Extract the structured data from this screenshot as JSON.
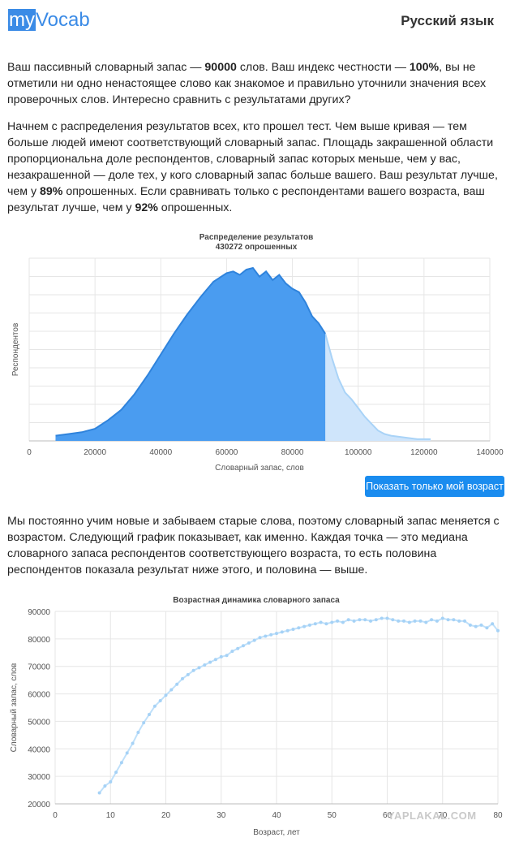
{
  "header": {
    "logo_my": "my",
    "logo_rest": "Vocab",
    "language": "Русский язык"
  },
  "intro": {
    "p1_a": "Ваш пассивный словарный запас — ",
    "vocab_value": "90000",
    "p1_b": " слов. Ваш индекс честности — ",
    "honesty_value": "100%",
    "p1_c": ", вы не отметили ни одно ненастоящее слово как знакомое и правильно уточнили значения всех проверочных слов. Интересно сравнить с результатами других?",
    "p2_a": "Начнем с распределения результатов всех, кто прошел тест. Чем выше кривая — тем больше людей имеют соответствующий словарный запас. Площадь закрашенной области пропорциональна доле респондентов, словарный запас которых меньше, чем у вас, незакрашенной — доле тех, у кого словарный запас больше вашего. Ваш результат лучше, чем у ",
    "better_all": "89%",
    "p2_b": " опрошенных. Если сравнивать только с респондентами вашего возраста, ваш результат лучше, чем у ",
    "better_age": "92%",
    "p2_c": " опрошенных.",
    "p3": "Мы постоянно учим новые и забываем старые слова, поэтому словарный запас меняется с возрастом. Следующий график показывает, как именно. Каждая точка — это медиана словарного запаса респондентов соответствующего возраста, то есть половина респондентов показала результат ниже этого, и половина — выше."
  },
  "button": {
    "label": "Показать только мой возраст"
  },
  "watermark": "YAPLAKAL.COM",
  "colors": {
    "accent": "#3b8be6",
    "fill_dark": "#4a9cf0",
    "fill_light": "#cfe5fb",
    "line_light": "#a9d3f7"
  },
  "chart_data": [
    {
      "type": "area",
      "title": "Распределение результатов",
      "subtitle": "430272 опрошенных",
      "xlabel": "Словарный запас, слов",
      "ylabel": "Респондентов",
      "xlim": [
        0,
        140000
      ],
      "xticks": [
        "0",
        "20000",
        "40000",
        "60000",
        "80000",
        "100000",
        "120000",
        "140000"
      ],
      "y_tick_labels_shown": false,
      "ylim": [
        0,
        100
      ],
      "grid": true,
      "user_value": 90000,
      "x": [
        8000,
        12000,
        16000,
        20000,
        24000,
        28000,
        32000,
        36000,
        40000,
        44000,
        48000,
        52000,
        56000,
        60000,
        62000,
        64000,
        66000,
        68000,
        70000,
        72000,
        74000,
        76000,
        78000,
        80000,
        82000,
        84000,
        86000,
        88000,
        90000,
        92000,
        94000,
        96000,
        98000,
        100000,
        102000,
        104000,
        106000,
        108000,
        110000,
        114000,
        118000,
        122000
      ],
      "y": [
        3,
        4,
        5,
        7,
        12,
        18,
        27,
        38,
        50,
        62,
        73,
        83,
        92,
        97,
        98,
        96,
        99,
        100,
        95,
        98,
        93,
        96,
        91,
        88,
        86,
        80,
        72,
        68,
        62,
        48,
        36,
        28,
        24,
        19,
        14,
        10,
        6,
        4,
        3,
        2,
        1,
        1
      ]
    },
    {
      "type": "line",
      "title": "Возрастная динамика словарного запаса",
      "xlabel": "Возраст, лет",
      "ylabel": "Словарный запас, слов",
      "xlim": [
        0,
        80
      ],
      "ylim": [
        20000,
        90000
      ],
      "xticks": [
        "0",
        "10",
        "20",
        "30",
        "40",
        "50",
        "60",
        "70",
        "80"
      ],
      "yticks": [
        "20000",
        "30000",
        "40000",
        "50000",
        "60000",
        "70000",
        "80000",
        "90000"
      ],
      "grid": true,
      "x": [
        8,
        9,
        10,
        11,
        12,
        13,
        14,
        15,
        16,
        17,
        18,
        19,
        20,
        21,
        22,
        23,
        24,
        25,
        26,
        27,
        28,
        29,
        30,
        31,
        32,
        33,
        34,
        35,
        36,
        37,
        38,
        39,
        40,
        41,
        42,
        43,
        44,
        45,
        46,
        47,
        48,
        49,
        50,
        51,
        52,
        53,
        54,
        55,
        56,
        57,
        58,
        59,
        60,
        61,
        62,
        63,
        64,
        65,
        66,
        67,
        68,
        69,
        70,
        71,
        72,
        73,
        74,
        75,
        76,
        77,
        78,
        79,
        80
      ],
      "y": [
        24000,
        26500,
        28000,
        31500,
        35000,
        38500,
        42000,
        46000,
        49500,
        52500,
        55500,
        57500,
        59500,
        61500,
        63500,
        65500,
        67000,
        68500,
        69500,
        70500,
        71500,
        72500,
        73500,
        74000,
        75500,
        76500,
        77500,
        78500,
        79500,
        80500,
        81000,
        81500,
        82000,
        82500,
        83000,
        83500,
        84000,
        84500,
        85000,
        85500,
        86000,
        85500,
        86000,
        86500,
        86000,
        87000,
        86500,
        87000,
        87000,
        86500,
        87000,
        87500,
        87500,
        87000,
        86500,
        86500,
        86000,
        86500,
        86500,
        86000,
        87000,
        86500,
        87500,
        87000,
        87000,
        86500,
        86500,
        85000,
        84500,
        85000,
        84000,
        85500,
        83000
      ]
    }
  ]
}
